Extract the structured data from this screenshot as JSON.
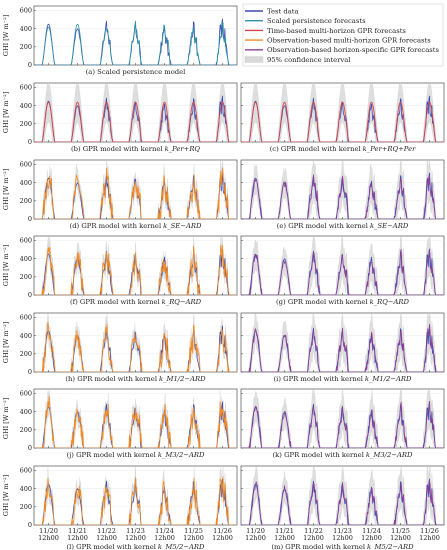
{
  "figure": {
    "legend": [
      {
        "name": "Test data",
        "color": "#3b4bb0",
        "kind": "line"
      },
      {
        "name": "Scaled persistence forecasts",
        "color": "#2a93a3",
        "kind": "line"
      },
      {
        "name": "Time-based multi-horizon GPR forecasts",
        "color": "#d2454b",
        "kind": "line"
      },
      {
        "name": "Observation-based multi-horizon GPR forecasts",
        "color": "#f08a24",
        "kind": "line"
      },
      {
        "name": "Observation-based horizon-specific GPR forecasts",
        "color": "#8e3f95",
        "kind": "line"
      },
      {
        "name": "95% confidence interval",
        "color": "#d9d9d9",
        "kind": "band"
      }
    ],
    "ylabel": "GHI [W m⁻²]",
    "yticks": [
      "0",
      "200",
      "400",
      "600"
    ],
    "xticks_day": [
      "11/20",
      "11/21",
      "11/22",
      "11/23",
      "11/24",
      "11/25",
      "11/26"
    ],
    "xticks_hour": [
      "12h00",
      "12h00",
      "12h00",
      "12h00",
      "12h00",
      "12h00",
      "12h00"
    ]
  },
  "chart_data": [
    {
      "type": "line",
      "caption": "(a) Scaled persistence model",
      "model": "persistence",
      "ylim": [
        0,
        650
      ],
      "series": [
        "Test data",
        "Scaled persistence forecasts"
      ]
    },
    {
      "type": "line",
      "caption": "(b) GPR model with kernel",
      "kernel": "k_Per+RQ",
      "model": "time",
      "ylim": [
        0,
        650
      ]
    },
    {
      "type": "line",
      "caption": "(c) GPR model with kernel",
      "kernel": "k_Per+RQ+Per",
      "model": "time",
      "ylim": [
        0,
        650
      ]
    },
    {
      "type": "line",
      "caption": "(d) GPR model with kernel",
      "kernel": "k_SE−ARD",
      "model": "obs_multi",
      "ylim": [
        0,
        650
      ]
    },
    {
      "type": "line",
      "caption": "(e) GPR model with kernel",
      "kernel": "k_SE−ARD",
      "model": "obs_specific",
      "ylim": [
        0,
        650
      ]
    },
    {
      "type": "line",
      "caption": "(f) GPR model with kernel",
      "kernel": "k_RQ−ARD",
      "model": "obs_multi",
      "ylim": [
        0,
        650
      ]
    },
    {
      "type": "line",
      "caption": "(g) GPR model with kernel",
      "kernel": "k_RQ−ARD",
      "model": "obs_specific",
      "ylim": [
        0,
        650
      ]
    },
    {
      "type": "line",
      "caption": "(h) GPR model with kernel",
      "kernel": "k_M1/2−ARD",
      "model": "obs_multi",
      "ylim": [
        0,
        650
      ]
    },
    {
      "type": "line",
      "caption": "(i) GPR model with kernel",
      "kernel": "k_M1/2−ARD",
      "model": "obs_specific",
      "ylim": [
        0,
        650
      ]
    },
    {
      "type": "line",
      "caption": "(j) GPR model with kernel",
      "kernel": "k_M3/2−ARD",
      "model": "obs_multi",
      "ylim": [
        0,
        650
      ]
    },
    {
      "type": "line",
      "caption": "(k) GPR model with kernel",
      "kernel": "k_M3/2−ARD",
      "model": "obs_specific",
      "ylim": [
        0,
        650
      ]
    },
    {
      "type": "line",
      "caption": "(l) GPR model with kernel",
      "kernel": "k_M5/2−ARD",
      "model": "obs_multi",
      "ylim": [
        0,
        650
      ]
    },
    {
      "type": "line",
      "caption": "(m) GPR model with kernel",
      "kernel": "k_M5/2−ARD",
      "model": "obs_specific",
      "ylim": [
        0,
        650
      ]
    }
  ],
  "test_peaks": [
    450,
    420,
    540,
    500,
    420,
    470,
    560
  ],
  "colors": {
    "axis": "#333333",
    "grid": "#e6e6e6"
  }
}
